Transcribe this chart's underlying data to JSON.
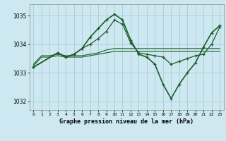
{
  "title": "Graphe pression niveau de la mer (hPa)",
  "background_color": "#cde8f0",
  "grid_color": "#aaccd8",
  "line_color": "#1a5c2a",
  "xlim": [
    -0.5,
    23.5
  ],
  "ylim": [
    1031.7,
    1035.4
  ],
  "yticks": [
    1032,
    1033,
    1034,
    1035
  ],
  "xticks": [
    0,
    1,
    2,
    3,
    4,
    5,
    6,
    7,
    8,
    9,
    10,
    11,
    12,
    13,
    14,
    15,
    16,
    17,
    18,
    19,
    20,
    21,
    22,
    23
  ],
  "series": [
    {
      "x": [
        0,
        1,
        2,
        3,
        4,
        5,
        6,
        7,
        8,
        9,
        10,
        11,
        12,
        13,
        14,
        15,
        16,
        17,
        18,
        19,
        20,
        21,
        22,
        23
      ],
      "y": [
        1033.25,
        1033.55,
        1033.55,
        1033.6,
        1033.55,
        1033.55,
        1033.55,
        1033.6,
        1033.65,
        1033.7,
        1033.75,
        1033.75,
        1033.75,
        1033.75,
        1033.75,
        1033.75,
        1033.75,
        1033.75,
        1033.75,
        1033.75,
        1033.75,
        1033.75,
        1033.75,
        1033.75
      ],
      "marker": null,
      "linestyle": "-",
      "linewidth": 0.8
    },
    {
      "x": [
        0,
        1,
        2,
        3,
        4,
        5,
        6,
        7,
        8,
        9,
        10,
        11,
        12,
        13,
        14,
        15,
        16,
        17,
        18,
        19,
        20,
        21,
        22,
        23
      ],
      "y": [
        1033.3,
        1033.6,
        1033.6,
        1033.65,
        1033.6,
        1033.6,
        1033.6,
        1033.65,
        1033.7,
        1033.8,
        1033.85,
        1033.85,
        1033.85,
        1033.85,
        1033.85,
        1033.85,
        1033.85,
        1033.85,
        1033.85,
        1033.85,
        1033.85,
        1033.85,
        1033.85,
        1033.85
      ],
      "marker": null,
      "linestyle": "-",
      "linewidth": 0.8
    },
    {
      "x": [
        0,
        3,
        4,
        5,
        6,
        7,
        8,
        9,
        10,
        11,
        12,
        13,
        14,
        15,
        16,
        17,
        18,
        19,
        20,
        21,
        22,
        23
      ],
      "y": [
        1033.2,
        1033.7,
        1033.55,
        1033.65,
        1033.85,
        1034.25,
        1034.55,
        1034.85,
        1035.05,
        1034.85,
        1034.15,
        1033.65,
        1033.55,
        1033.3,
        1032.6,
        1032.1,
        1032.6,
        1033.0,
        1033.35,
        1033.9,
        1034.4,
        1034.65
      ],
      "marker": "+",
      "linestyle": "-",
      "linewidth": 1.2
    },
    {
      "x": [
        0,
        3,
        4,
        5,
        6,
        7,
        8,
        9,
        10,
        11,
        12,
        13,
        14,
        15,
        16,
        17,
        18,
        19,
        20,
        21,
        22,
        23
      ],
      "y": [
        1033.2,
        1033.7,
        1033.55,
        1033.65,
        1033.85,
        1034.0,
        1034.2,
        1034.45,
        1034.85,
        1034.7,
        1034.05,
        1033.7,
        1033.65,
        1033.6,
        1033.55,
        1033.3,
        1033.4,
        1033.5,
        1033.6,
        1033.65,
        1034.0,
        1034.6
      ],
      "marker": "+",
      "linestyle": "-",
      "linewidth": 0.9
    }
  ]
}
